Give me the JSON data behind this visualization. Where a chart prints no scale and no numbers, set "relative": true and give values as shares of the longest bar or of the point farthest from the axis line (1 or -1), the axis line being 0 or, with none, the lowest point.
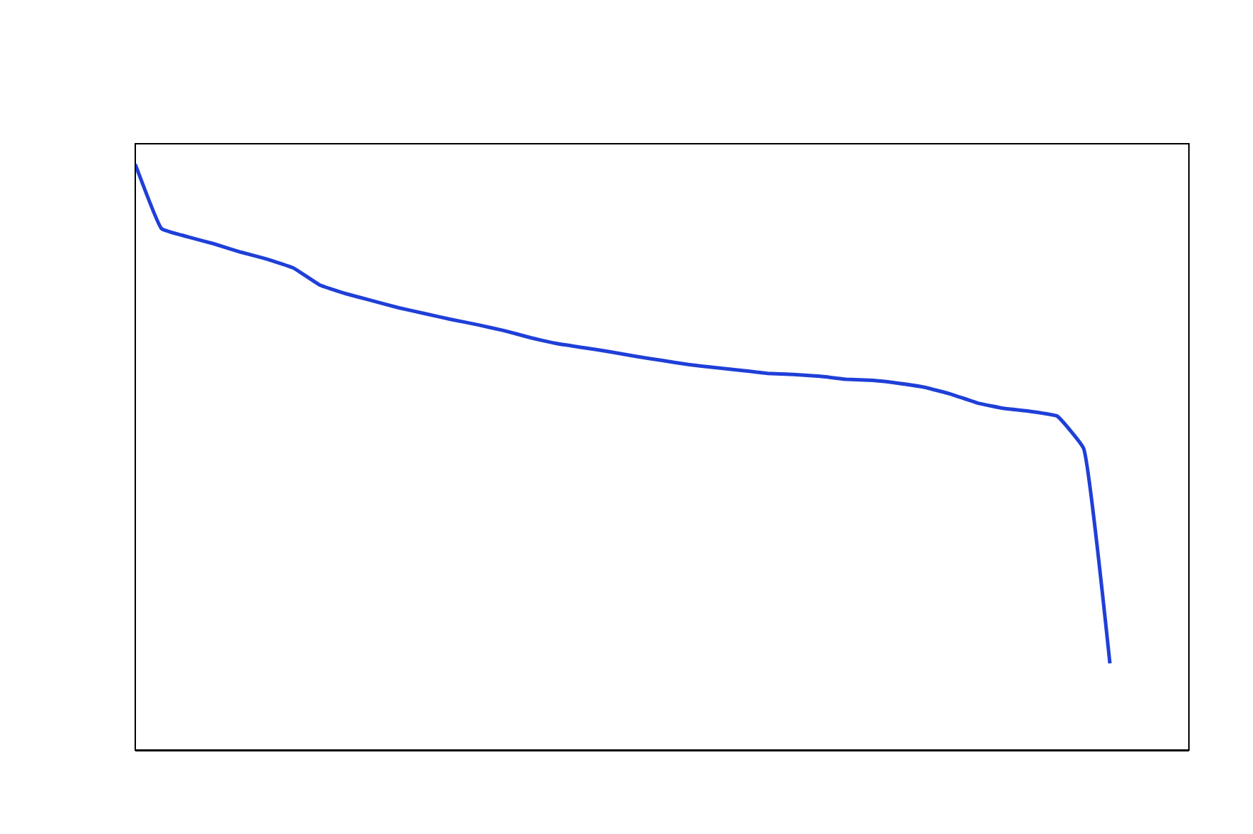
{
  "chart_data": {
    "type": "line",
    "relative": true,
    "categories": [
      null,
      null,
      null,
      null,
      null,
      null,
      null,
      null,
      null,
      null,
      null,
      null,
      null,
      null,
      null,
      null,
      null,
      null,
      null,
      null,
      null,
      null,
      null,
      null,
      null,
      null,
      null,
      null,
      null,
      null,
      null,
      null,
      null,
      null,
      null,
      null,
      null,
      null,
      null,
      null,
      null
    ],
    "series": [
      {
        "color": "#1f3fd8",
        "values": [
          1.0,
          0.89,
          0.876,
          0.864,
          0.85,
          0.838,
          0.823,
          0.794,
          0.779,
          0.767,
          0.755,
          0.745,
          0.735,
          0.726,
          0.716,
          0.704,
          0.694,
          0.687,
          0.68,
          0.672,
          0.665,
          0.658,
          0.653,
          0.648,
          0.643,
          0.641,
          0.638,
          0.633,
          0.631,
          0.626,
          0.619,
          0.607,
          0.592,
          0.583,
          0.578,
          0.57,
          0.515,
          0.148,
          null,
          null,
          null
        ]
      }
    ],
    "marker": "none",
    "line_style": "solid"
  }
}
